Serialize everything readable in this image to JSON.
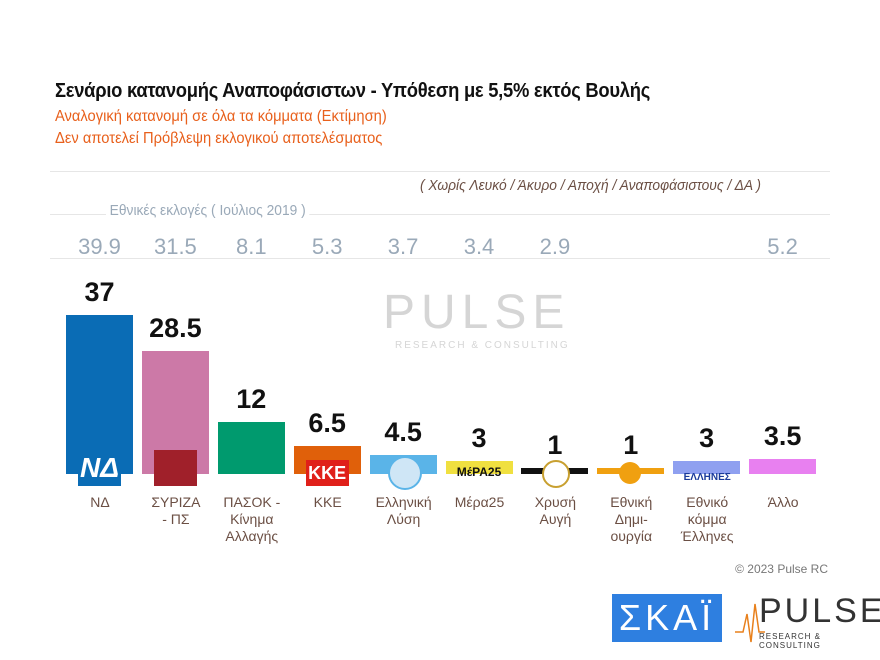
{
  "chart_data": {
    "type": "bar",
    "title": "Σενάριο κατανομής Αναποφάσιστων - Υπόθεση με 5,5% εκτός Βουλής",
    "subtitle": [
      "Αναλογική κατανομή σε όλα τα κόμματα   (Εκτίμηση)",
      "Δεν αποτελεί Πρόβλεψη εκλογικού αποτελέσματος"
    ],
    "note": "( Χωρίς Λευκό / Άκυρο / Αποχή / Αναποφάσιστους / ΔΑ )",
    "previous_label": "Εθνικές εκλογές  ( Ιούλιος 2019 )",
    "categories": [
      "ΝΔ",
      "ΣΥΡΙΖΑ\n- ΠΣ",
      "ΠΑΣΟΚ -\nΚίνημα\nΑλλαγής",
      "ΚΚΕ",
      "Ελληνική\nΛύση",
      "Μέρα25",
      "Χρυσή\nΑυγή",
      "Εθνική\nΔημι-\nουργία",
      "Εθνικό\nκόμμα\nΈλληνες",
      "Άλλο"
    ],
    "values": [
      37,
      28.5,
      12,
      6.5,
      4.5,
      3,
      1,
      1,
      3,
      3.5
    ],
    "value_labels": [
      "37",
      "28.5",
      "12",
      "6.5",
      "4.5",
      "3",
      "1",
      "1",
      "3",
      "3.5"
    ],
    "previous": [
      "39.9",
      "31.5",
      "8.1",
      "5.3",
      "3.7",
      "3.4",
      "2.9",
      "",
      "",
      "5.2"
    ],
    "colors": [
      "#0a6cb5",
      "#cc79a7",
      "#009a6e",
      "#e0600a",
      "#5ab4e8",
      "#f0e040",
      "#111111",
      "#f0a010",
      "#8fa0f0",
      "#e880f0"
    ],
    "ylim": [
      0,
      40
    ],
    "grid": false
  },
  "logos": [
    "ΝΔ",
    "ΚΚΕ",
    "ΜέΡΑ25",
    "ΕΛΛΗΝΕΣ"
  ],
  "copyright": "© 2023 Pulse RC",
  "brand": {
    "skai": "ΣΚΑΪ",
    "pulse": "PULSE",
    "pulse_tag": "RESEARCH & CONSULTING"
  }
}
